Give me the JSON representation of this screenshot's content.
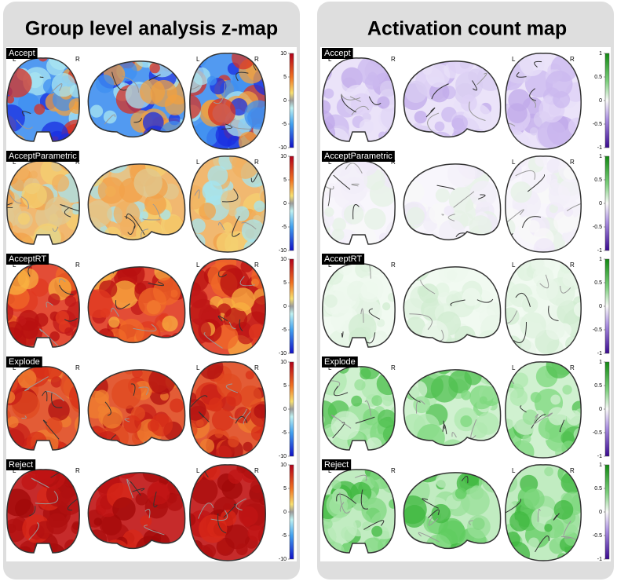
{
  "panels": [
    {
      "title": "Group level analysis z-map",
      "left_label": "L",
      "right_label": "R",
      "colorbar_ticks": [
        "10",
        "5",
        "0",
        "-5",
        "-10"
      ],
      "rows": [
        "Accept",
        "AcceptParametric",
        "AcceptRT",
        "Explode",
        "Reject"
      ]
    },
    {
      "title": "Activation count map",
      "left_label": "L",
      "right_label": "R",
      "colorbar_ticks": [
        "1",
        "0.5",
        "0",
        "-0.5",
        "-1"
      ],
      "rows": [
        "Accept",
        "AcceptParametric",
        "AcceptRT",
        "Explode",
        "Reject"
      ]
    }
  ]
}
